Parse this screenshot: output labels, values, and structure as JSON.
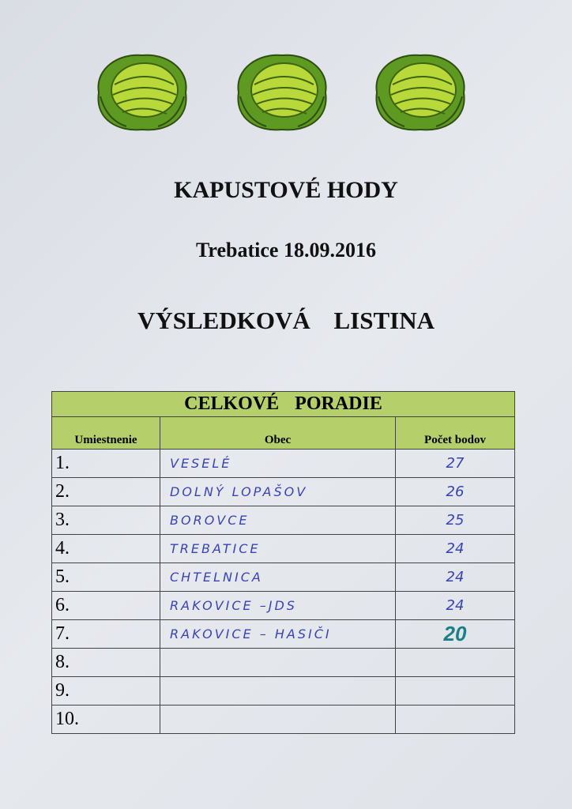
{
  "document": {
    "title": "KAPUSTOVÉ HODY",
    "subtitle": "Trebatice  18.09.2016",
    "heading": "VÝSLEDKOVÁ LISTINA",
    "colors": {
      "header_green": "#b5d06a",
      "ink_blue": "#3943b3",
      "ink_teal": "#1a7f88",
      "cabbage_green": "#7cb82f"
    },
    "decorations": [
      "cabbage-icon",
      "cabbage-icon",
      "cabbage-icon"
    ]
  },
  "table": {
    "title": "CELKOVÉ PORADIE",
    "columns": [
      "Umiestnenie",
      "Obec",
      "Počet bodov"
    ],
    "rows": [
      {
        "place": "1.",
        "obec": "VESELÉ",
        "points": "27"
      },
      {
        "place": "2.",
        "obec": "DOLNÝ LOPAŠOV",
        "points": "26"
      },
      {
        "place": "3.",
        "obec": "BOROVCE",
        "points": "25"
      },
      {
        "place": "4.",
        "obec": "TREBATICE",
        "points": "24"
      },
      {
        "place": "5.",
        "obec": "CHTELNICA",
        "points": "24"
      },
      {
        "place": "6.",
        "obec": "RAKOVICE –JDS",
        "points": "24"
      },
      {
        "place": "7.",
        "obec": "RAKOVICE – HASIČI",
        "points": "20"
      },
      {
        "place": "8.",
        "obec": "",
        "points": ""
      },
      {
        "place": "9.",
        "obec": "",
        "points": ""
      },
      {
        "place": "10.",
        "obec": "",
        "points": ""
      }
    ]
  }
}
